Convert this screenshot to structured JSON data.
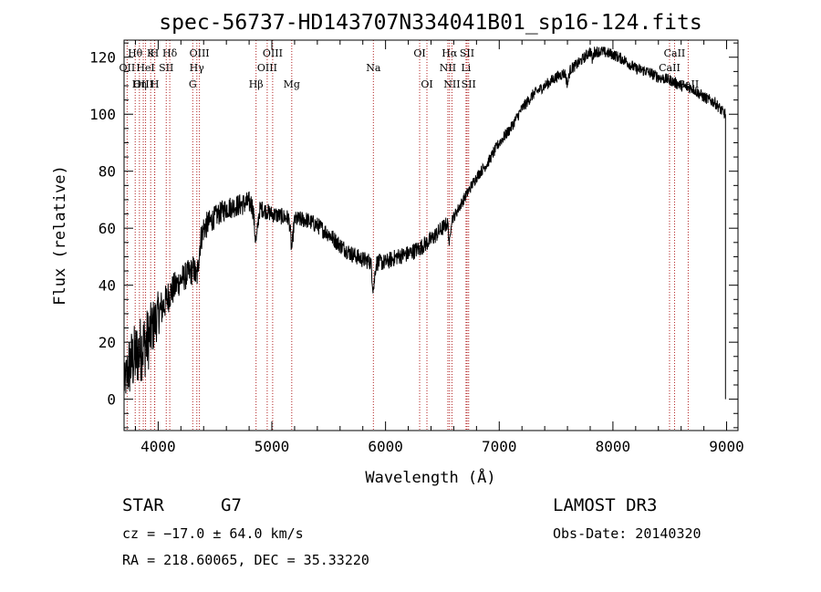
{
  "chart_data": {
    "type": "line",
    "title": "spec-56737-HD143707N334041B01_sp16-124.fits",
    "xlabel": "Wavelength (Å)",
    "ylabel": "Flux (relative)",
    "xlim": [
      3700,
      9100
    ],
    "ylim": [
      -11,
      126
    ],
    "xticks": [
      4000,
      5000,
      6000,
      7000,
      8000,
      9000
    ],
    "yticks": [
      0,
      20,
      40,
      60,
      80,
      100,
      120
    ],
    "line_color": "#b22222",
    "spectrum_anchor_points": [
      {
        "x": 3700,
        "y": 5,
        "noise": 6
      },
      {
        "x": 3750,
        "y": 12,
        "noise": 12
      },
      {
        "x": 3800,
        "y": 15,
        "noise": 12
      },
      {
        "x": 3850,
        "y": 18,
        "noise": 12
      },
      {
        "x": 3900,
        "y": 20,
        "noise": 12
      },
      {
        "x": 3950,
        "y": 25,
        "noise": 10
      },
      {
        "x": 4000,
        "y": 30,
        "noise": 8
      },
      {
        "x": 4050,
        "y": 33,
        "noise": 6
      },
      {
        "x": 4100,
        "y": 37,
        "noise": 6
      },
      {
        "x": 4200,
        "y": 42,
        "noise": 5
      },
      {
        "x": 4300,
        "y": 45,
        "noise": 5
      },
      {
        "x": 4400,
        "y": 60,
        "noise": 5
      },
      {
        "x": 4500,
        "y": 64,
        "noise": 4
      },
      {
        "x": 4600,
        "y": 67,
        "noise": 4
      },
      {
        "x": 4700,
        "y": 68,
        "noise": 4
      },
      {
        "x": 4800,
        "y": 69,
        "noise": 4
      },
      {
        "x": 4900,
        "y": 67,
        "noise": 3
      },
      {
        "x": 5000,
        "y": 65,
        "noise": 3
      },
      {
        "x": 5100,
        "y": 64,
        "noise": 3
      },
      {
        "x": 5200,
        "y": 63,
        "noise": 3
      },
      {
        "x": 5300,
        "y": 63,
        "noise": 3
      },
      {
        "x": 5400,
        "y": 61,
        "noise": 3
      },
      {
        "x": 5500,
        "y": 58,
        "noise": 3
      },
      {
        "x": 5600,
        "y": 54,
        "noise": 3
      },
      {
        "x": 5700,
        "y": 51,
        "noise": 3
      },
      {
        "x": 5800,
        "y": 49,
        "noise": 3
      },
      {
        "x": 5900,
        "y": 48,
        "noise": 3
      },
      {
        "x": 6000,
        "y": 48,
        "noise": 3
      },
      {
        "x": 6100,
        "y": 50,
        "noise": 3
      },
      {
        "x": 6200,
        "y": 51,
        "noise": 3
      },
      {
        "x": 6300,
        "y": 53,
        "noise": 3
      },
      {
        "x": 6400,
        "y": 56,
        "noise": 3
      },
      {
        "x": 6500,
        "y": 60,
        "noise": 3
      },
      {
        "x": 6600,
        "y": 64,
        "noise": 2
      },
      {
        "x": 6700,
        "y": 71,
        "noise": 2
      },
      {
        "x": 6800,
        "y": 78,
        "noise": 2
      },
      {
        "x": 6900,
        "y": 83,
        "noise": 2
      },
      {
        "x": 7000,
        "y": 90,
        "noise": 2
      },
      {
        "x": 7100,
        "y": 95,
        "noise": 2
      },
      {
        "x": 7200,
        "y": 102,
        "noise": 2
      },
      {
        "x": 7300,
        "y": 107,
        "noise": 2
      },
      {
        "x": 7400,
        "y": 110,
        "noise": 2
      },
      {
        "x": 7500,
        "y": 113,
        "noise": 2
      },
      {
        "x": 7600,
        "y": 115,
        "noise": 2
      },
      {
        "x": 7700,
        "y": 118,
        "noise": 2
      },
      {
        "x": 7800,
        "y": 122,
        "noise": 2
      },
      {
        "x": 7900,
        "y": 122,
        "noise": 2
      },
      {
        "x": 8000,
        "y": 121,
        "noise": 2
      },
      {
        "x": 8100,
        "y": 119,
        "noise": 2
      },
      {
        "x": 8200,
        "y": 116,
        "noise": 2
      },
      {
        "x": 8300,
        "y": 115,
        "noise": 2
      },
      {
        "x": 8400,
        "y": 113,
        "noise": 2
      },
      {
        "x": 8500,
        "y": 112,
        "noise": 2
      },
      {
        "x": 8600,
        "y": 110,
        "noise": 2
      },
      {
        "x": 8700,
        "y": 109,
        "noise": 2
      },
      {
        "x": 8800,
        "y": 106,
        "noise": 2
      },
      {
        "x": 8900,
        "y": 104,
        "noise": 2
      },
      {
        "x": 8960,
        "y": 101,
        "noise": 2
      },
      {
        "x": 8990,
        "y": 100,
        "noise": 2
      }
    ],
    "spectral_features": [
      {
        "x": 4340,
        "depth": 8,
        "width": 20
      },
      {
        "x": 4861,
        "depth": 12,
        "width": 20
      },
      {
        "x": 5175,
        "depth": 10,
        "width": 15
      },
      {
        "x": 5893,
        "depth": 9,
        "width": 15
      },
      {
        "x": 6563,
        "depth": 8,
        "width": 10
      },
      {
        "x": 7600,
        "depth": 4,
        "width": 15
      },
      {
        "x": 7820,
        "depth": 3,
        "width": 10
      }
    ],
    "spectral_lines": [
      {
        "label": "Hθ",
        "x": 3798,
        "row": 1
      },
      {
        "label": "OII",
        "x": 3727,
        "row": 2
      },
      {
        "label": "OIII",
        "x": 3869,
        "row": 3
      },
      {
        "label": "K",
        "x": 3934,
        "row": 1
      },
      {
        "label": "H",
        "x": 3968,
        "row": 1
      },
      {
        "label": "HeI",
        "x": 3889,
        "row": 2
      },
      {
        "label": "SII",
        "x": 4071,
        "row": 2
      },
      {
        "label": "Hη",
        "x": 3835,
        "row": 3
      },
      {
        "label": "H",
        "x": 3970,
        "row": 3
      },
      {
        "label": "Hδ",
        "x": 4102,
        "row": 1
      },
      {
        "label": "OIII",
        "x": 4363,
        "row": 1
      },
      {
        "label": "Hγ",
        "x": 4340,
        "row": 2
      },
      {
        "label": "G",
        "x": 4304,
        "row": 3
      },
      {
        "label": "OIII",
        "x": 5007,
        "row": 1
      },
      {
        "label": "OIII",
        "x": 4959,
        "row": 2
      },
      {
        "label": "Hβ",
        "x": 4861,
        "row": 3
      },
      {
        "label": "Mg",
        "x": 5175,
        "row": 3
      },
      {
        "label": "Na",
        "x": 5893,
        "row": 2
      },
      {
        "label": "OI",
        "x": 6300,
        "row": 1
      },
      {
        "label": "OI",
        "x": 6364,
        "row": 3
      },
      {
        "label": "Hα",
        "x": 6563,
        "row": 1
      },
      {
        "label": "NII",
        "x": 6548,
        "row": 2
      },
      {
        "label": "NII",
        "x": 6584,
        "row": 3
      },
      {
        "label": "SII",
        "x": 6717,
        "row": 1
      },
      {
        "label": "Li",
        "x": 6708,
        "row": 2
      },
      {
        "label": "SII",
        "x": 6731,
        "row": 3
      },
      {
        "label": "CaII",
        "x": 8542,
        "row": 1
      },
      {
        "label": "CaII",
        "x": 8498,
        "row": 2
      },
      {
        "label": "CaII",
        "x": 8662,
        "row": 3
      }
    ]
  },
  "info": {
    "object_type": "STAR",
    "subclass": "G7",
    "survey": "LAMOST DR3",
    "redshift": "cz = −17.0 ± 64.0 km/s",
    "obs_date": "Obs-Date: 20140320",
    "coords": "RA = 218.60065, DEC =  35.33220"
  }
}
